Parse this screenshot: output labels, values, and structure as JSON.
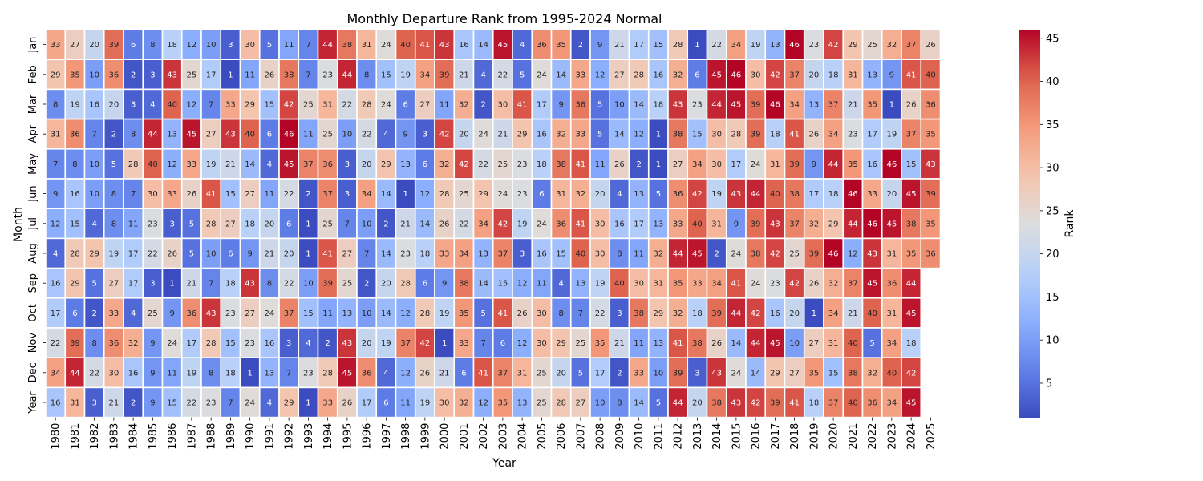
{
  "chart_data": {
    "type": "heatmap",
    "title": "Monthly Departure Rank from 1995-2024 Normal",
    "xlabel": "Year",
    "ylabel": "Month",
    "colorbar_label": "Rank",
    "colormap": "coolwarm",
    "color_range": [
      1,
      46
    ],
    "colorbar_ticks": [
      5,
      10,
      15,
      20,
      25,
      30,
      35,
      40,
      45
    ],
    "colors": {
      "low": "#3b4cc0",
      "mid": "#dddddd",
      "high": "#b40426",
      "cell_border": "#ffffff"
    },
    "x": [
      1980,
      1981,
      1982,
      1983,
      1984,
      1985,
      1986,
      1987,
      1988,
      1989,
      1990,
      1991,
      1992,
      1993,
      1994,
      1995,
      1996,
      1997,
      1998,
      1999,
      2000,
      2001,
      2002,
      2003,
      2004,
      2005,
      2006,
      2007,
      2008,
      2009,
      2010,
      2011,
      2012,
      2013,
      2014,
      2015,
      2016,
      2017,
      2018,
      2019,
      2020,
      2021,
      2022,
      2023,
      2024,
      2025
    ],
    "y": [
      "Jan",
      "Feb",
      "Mar",
      "Apr",
      "May",
      "Jun",
      "Jul",
      "Aug",
      "Sep",
      "Oct",
      "Nov",
      "Dec",
      "Year"
    ],
    "values": [
      [
        33,
        27,
        20,
        39,
        6,
        8,
        18,
        12,
        10,
        3,
        30,
        5,
        11,
        7,
        44,
        38,
        31,
        24,
        40,
        41,
        43,
        16,
        14,
        45,
        4,
        36,
        35,
        2,
        9,
        21,
        17,
        15,
        28,
        1,
        22,
        34,
        19,
        13,
        46,
        23,
        42,
        29,
        25,
        32,
        37,
        26
      ],
      [
        29,
        35,
        10,
        36,
        2,
        3,
        43,
        25,
        17,
        1,
        11,
        26,
        38,
        7,
        23,
        44,
        8,
        15,
        19,
        34,
        39,
        21,
        4,
        22,
        5,
        24,
        14,
        33,
        12,
        27,
        28,
        16,
        32,
        6,
        45,
        46,
        30,
        42,
        37,
        20,
        18,
        31,
        13,
        9,
        41,
        40
      ],
      [
        8,
        19,
        16,
        20,
        3,
        4,
        40,
        12,
        7,
        33,
        29,
        15,
        42,
        25,
        31,
        22,
        28,
        24,
        6,
        27,
        11,
        32,
        2,
        30,
        41,
        17,
        9,
        38,
        5,
        10,
        14,
        18,
        43,
        23,
        44,
        45,
        39,
        46,
        34,
        13,
        37,
        21,
        35,
        1,
        26,
        36
      ],
      [
        31,
        36,
        7,
        2,
        8,
        44,
        13,
        45,
        27,
        43,
        40,
        6,
        46,
        11,
        25,
        10,
        22,
        4,
        9,
        3,
        42,
        20,
        24,
        21,
        29,
        16,
        32,
        33,
        5,
        14,
        12,
        1,
        38,
        15,
        30,
        28,
        39,
        18,
        41,
        26,
        34,
        23,
        17,
        19,
        37,
        35
      ],
      [
        7,
        8,
        10,
        5,
        28,
        40,
        12,
        33,
        19,
        21,
        14,
        4,
        45,
        37,
        36,
        3,
        20,
        29,
        13,
        6,
        32,
        42,
        22,
        25,
        23,
        18,
        38,
        41,
        11,
        26,
        2,
        1,
        27,
        34,
        30,
        17,
        24,
        31,
        39,
        9,
        44,
        35,
        16,
        46,
        15,
        43
      ],
      [
        9,
        16,
        10,
        8,
        7,
        30,
        33,
        26,
        41,
        15,
        27,
        11,
        22,
        2,
        37,
        3,
        34,
        14,
        1,
        12,
        28,
        25,
        29,
        24,
        23,
        6,
        31,
        32,
        20,
        4,
        13,
        5,
        36,
        42,
        19,
        43,
        44,
        40,
        38,
        17,
        18,
        46,
        33,
        20,
        45,
        39
      ],
      [
        12,
        15,
        4,
        8,
        11,
        23,
        3,
        5,
        28,
        27,
        18,
        20,
        6,
        1,
        25,
        7,
        10,
        2,
        21,
        14,
        26,
        22,
        34,
        42,
        19,
        24,
        36,
        41,
        30,
        16,
        17,
        13,
        33,
        40,
        31,
        9,
        39,
        43,
        37,
        32,
        29,
        44,
        46,
        45,
        38,
        35
      ],
      [
        4,
        28,
        29,
        19,
        17,
        22,
        26,
        5,
        10,
        6,
        9,
        21,
        20,
        1,
        41,
        27,
        7,
        14,
        23,
        18,
        33,
        34,
        13,
        37,
        3,
        16,
        15,
        40,
        30,
        8,
        11,
        32,
        44,
        45,
        2,
        24,
        38,
        42,
        25,
        39,
        46,
        12,
        43,
        31,
        35,
        36
      ],
      [
        16,
        29,
        5,
        27,
        17,
        3,
        1,
        21,
        7,
        18,
        43,
        8,
        22,
        10,
        39,
        25,
        2,
        20,
        28,
        6,
        9,
        38,
        14,
        15,
        12,
        11,
        4,
        13,
        19,
        40,
        30,
        31,
        35,
        33,
        34,
        41,
        24,
        23,
        42,
        26,
        32,
        37,
        45,
        36,
        44,
        null
      ],
      [
        17,
        6,
        2,
        33,
        4,
        25,
        9,
        36,
        43,
        23,
        27,
        24,
        37,
        15,
        11,
        13,
        10,
        14,
        12,
        28,
        19,
        35,
        5,
        41,
        26,
        30,
        8,
        7,
        22,
        3,
        38,
        29,
        32,
        18,
        39,
        44,
        42,
        16,
        20,
        1,
        34,
        21,
        40,
        31,
        45,
        null
      ],
      [
        22,
        39,
        8,
        36,
        32,
        9,
        24,
        17,
        28,
        15,
        23,
        16,
        3,
        4,
        2,
        43,
        20,
        19,
        37,
        42,
        1,
        33,
        7,
        6,
        12,
        30,
        29,
        25,
        35,
        21,
        11,
        13,
        41,
        38,
        26,
        14,
        44,
        45,
        10,
        27,
        31,
        40,
        5,
        34,
        18,
        null
      ],
      [
        34,
        44,
        22,
        30,
        16,
        9,
        11,
        19,
        8,
        18,
        1,
        13,
        7,
        23,
        28,
        45,
        36,
        4,
        12,
        26,
        21,
        6,
        41,
        37,
        31,
        25,
        20,
        5,
        17,
        2,
        33,
        10,
        39,
        3,
        43,
        24,
        14,
        29,
        27,
        35,
        15,
        38,
        32,
        40,
        42,
        null
      ],
      [
        16,
        31,
        3,
        21,
        2,
        9,
        15,
        22,
        23,
        7,
        24,
        4,
        29,
        1,
        33,
        26,
        17,
        6,
        11,
        19,
        30,
        32,
        12,
        35,
        13,
        25,
        28,
        27,
        10,
        8,
        14,
        5,
        44,
        20,
        38,
        43,
        42,
        39,
        41,
        18,
        37,
        40,
        36,
        34,
        45,
        null
      ]
    ]
  }
}
